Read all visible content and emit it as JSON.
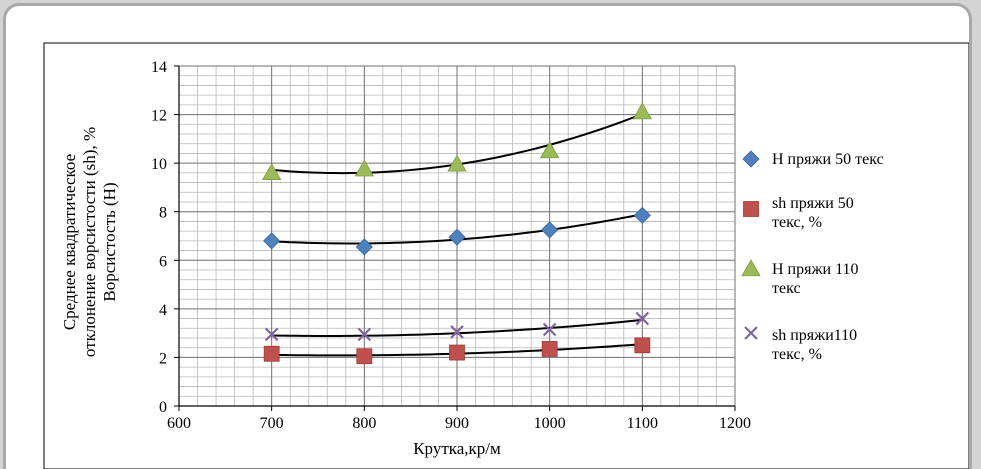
{
  "chart_data": {
    "type": "scatter",
    "title": "",
    "xlabel": "Крутка,кр/м",
    "ylabel_lines": [
      "Среднее квадратическое",
      "отклонение  ворсистости (sh), %",
      "Ворсистость (Н)"
    ],
    "xlim": [
      600,
      1200
    ],
    "ylim": [
      0,
      14
    ],
    "xticks": [
      600,
      700,
      800,
      900,
      1000,
      1100,
      1200
    ],
    "yticks": [
      0,
      2,
      4,
      6,
      8,
      10,
      12,
      14
    ],
    "grid": true,
    "minor_grid": true,
    "trendline": "polynomial",
    "legend_position": "right",
    "series": [
      {
        "name_lines": [
          "Н пряжи 50 текс"
        ],
        "marker": "diamond",
        "color": "#4f81bd",
        "x": [
          700,
          800,
          900,
          1000,
          1100
        ],
        "y": [
          6.8,
          6.55,
          6.95,
          7.25,
          7.85
        ],
        "trend": [
          6.78,
          6.7,
          6.85,
          7.25,
          7.9
        ]
      },
      {
        "name_lines": [
          "sh пряжи 50",
          "текс, %"
        ],
        "marker": "square",
        "color": "#c0504d",
        "x": [
          700,
          800,
          900,
          1000,
          1100
        ],
        "y": [
          2.15,
          2.05,
          2.2,
          2.35,
          2.5
        ],
        "trend": [
          2.1,
          2.1,
          2.15,
          2.3,
          2.55
        ]
      },
      {
        "name_lines": [
          "Н пряжи 110",
          "текс"
        ],
        "marker": "triangle",
        "color": "#9bbb59",
        "x": [
          700,
          800,
          900,
          1000,
          1100
        ],
        "y": [
          9.6,
          9.75,
          9.95,
          10.5,
          12.1
        ],
        "trend": [
          9.7,
          9.65,
          9.95,
          10.7,
          12.05
        ]
      },
      {
        "name_lines": [
          "sh пряжи110",
          "текс, %"
        ],
        "marker": "x",
        "color": "#8064a2",
        "x": [
          700,
          800,
          900,
          1000,
          1100
        ],
        "y": [
          2.95,
          2.95,
          3.05,
          3.15,
          3.6
        ],
        "trend": [
          2.9,
          2.9,
          3.0,
          3.2,
          3.55
        ]
      }
    ]
  }
}
